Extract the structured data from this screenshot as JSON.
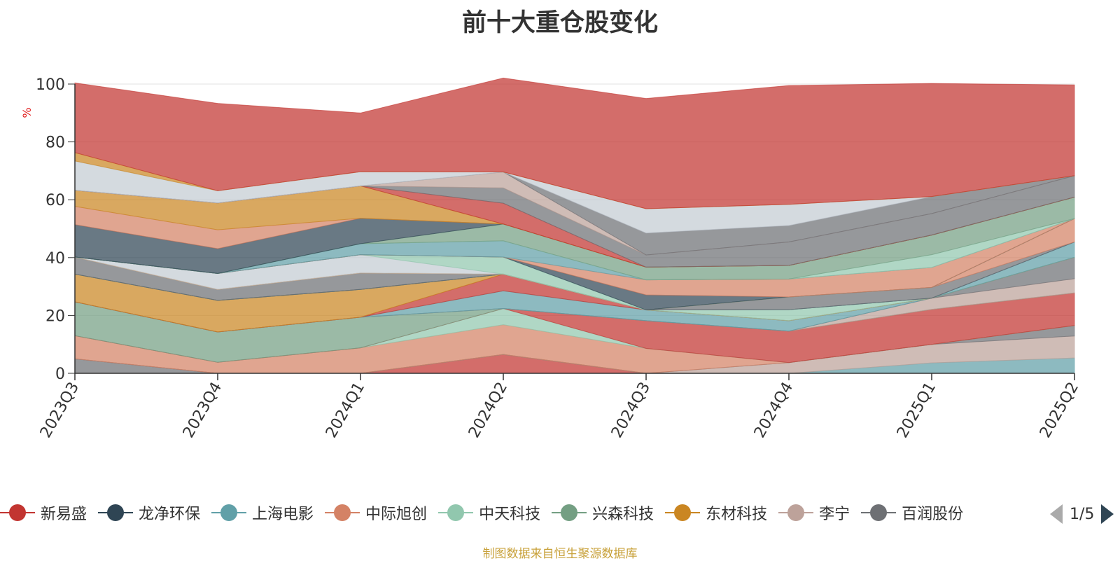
{
  "chart_data": {
    "type": "area",
    "title": "前十大重仓股变化",
    "ylabel": "%",
    "xlabel": "",
    "ylim": [
      0,
      100
    ],
    "yticks": [
      0,
      20,
      40,
      60,
      80,
      100
    ],
    "grid": true,
    "categories": [
      "2023Q3",
      "2023Q4",
      "2024Q1",
      "2024Q2",
      "2024Q3",
      "2024Q4",
      "2025Q1",
      "2025Q2"
    ],
    "series": [
      {
        "name": "",
        "color": "#6e7074",
        "values": [
          5,
          0,
          0,
          0,
          0,
          0,
          0,
          0
        ]
      },
      {
        "name": "",
        "color": "#c23531",
        "values": [
          0,
          0,
          0,
          6.5,
          0,
          0,
          0,
          0
        ]
      },
      {
        "name": "",
        "color": "#61a0a8",
        "values": [
          0,
          0,
          0,
          0,
          0,
          0,
          3.6,
          5.3
        ]
      },
      {
        "name": "",
        "color": "#bda29a",
        "values": [
          0,
          0,
          0,
          0,
          0,
          3.7,
          6.4,
          7.6
        ]
      },
      {
        "name": "",
        "color": "#6e7074",
        "values": [
          0,
          0,
          0,
          0,
          0,
          0,
          0,
          3.6
        ]
      },
      {
        "name": "",
        "color": "#d48265",
        "values": [
          8,
          3.8,
          8.8,
          10.3,
          8.6,
          0,
          0,
          0
        ]
      },
      {
        "name": "",
        "color": "#91c7ae",
        "values": [
          0,
          0,
          0,
          5.6,
          0,
          0,
          0,
          0
        ]
      },
      {
        "name": "",
        "color": "#c23531",
        "values": [
          0,
          0,
          0,
          0,
          9.6,
          10.9,
          12.1,
          11.3
        ]
      },
      {
        "name": "",
        "color": "#749f83",
        "values": [
          11.7,
          10.5,
          10.6,
          0,
          0,
          0,
          0,
          0
        ]
      },
      {
        "name": "",
        "color": "#bda29a",
        "values": [
          0,
          0,
          0,
          0,
          0,
          0,
          3.9,
          4.9
        ]
      },
      {
        "name": "",
        "color": "#6e7074",
        "values": [
          0,
          0,
          0,
          0,
          0,
          0,
          0,
          7.4
        ]
      },
      {
        "name": "",
        "color": "#61a0a8",
        "values": [
          0,
          0,
          0,
          6.1,
          3.7,
          3.6,
          0,
          0
        ]
      },
      {
        "name": "",
        "color": "#c23531",
        "values": [
          0,
          0,
          0,
          5.8,
          0,
          0,
          0,
          0
        ]
      },
      {
        "name": "",
        "color": "#ca8622",
        "values": [
          9.6,
          10.9,
          9.6,
          0,
          0,
          0,
          0,
          0
        ]
      },
      {
        "name": "",
        "color": "#91c7ae",
        "values": [
          0,
          0,
          0,
          0,
          0,
          3.8,
          0,
          0
        ]
      },
      {
        "name": "",
        "color": "#61a0a8",
        "values": [
          0,
          0,
          0,
          0,
          0,
          0,
          0,
          5.3
        ]
      },
      {
        "name": "",
        "color": "#2f4554",
        "values": [
          0,
          0,
          0,
          0,
          0,
          0,
          0,
          0
        ]
      },
      {
        "name": "",
        "color": "#6e7074",
        "values": [
          5.9,
          3.8,
          5.7,
          0,
          0,
          4.4,
          3.7,
          0
        ]
      },
      {
        "name": "",
        "color": "#d48265",
        "values": [
          0,
          0,
          0,
          0,
          0,
          0,
          0,
          8.1
        ]
      },
      {
        "name": "",
        "color": "#ca8622",
        "values": [
          0,
          0,
          0,
          0,
          0,
          0,
          0,
          0
        ]
      },
      {
        "name": "",
        "color": "#c4ccd3",
        "values": [
          0,
          5.5,
          6.3,
          0,
          0,
          0,
          0,
          0
        ]
      },
      {
        "name": "",
        "color": "#91c7ae",
        "values": [
          0,
          0,
          0,
          5.9,
          0,
          0,
          0,
          0
        ]
      },
      {
        "name": "",
        "color": "#2f4554",
        "values": [
          0,
          0,
          0,
          0,
          5.2,
          0,
          0,
          0
        ]
      },
      {
        "name": "",
        "color": "#d48265",
        "values": [
          0,
          0,
          0,
          0,
          5.2,
          6.2,
          6.9,
          0
        ]
      },
      {
        "name": "",
        "color": "#61a0a8",
        "values": [
          0,
          0,
          3.8,
          5.6,
          0,
          0,
          0,
          0
        ]
      },
      {
        "name": "",
        "color": "#91c7ae",
        "values": [
          0,
          0,
          0,
          0,
          0,
          0,
          4.4,
          0
        ]
      },
      {
        "name": "",
        "color": "#749f83",
        "values": [
          0,
          0,
          0,
          5.8,
          4.4,
          4.7,
          6.8,
          7.4
        ]
      },
      {
        "name": "",
        "color": "#2f4554",
        "values": [
          11.2,
          8.6,
          8.8,
          0,
          0,
          0,
          0,
          0
        ]
      },
      {
        "name": "",
        "color": "#d48265",
        "values": [
          6.3,
          6.5,
          0,
          0,
          0,
          0,
          0,
          0
        ]
      },
      {
        "name": "",
        "color": "#ca8622",
        "values": [
          5.6,
          9.3,
          11.2,
          0,
          0,
          0,
          0,
          0
        ]
      },
      {
        "name": "",
        "color": "#c23531",
        "values": [
          0,
          0,
          0,
          7.2,
          0,
          0,
          0,
          0
        ]
      },
      {
        "name": "",
        "color": "#6e7074",
        "values": [
          0,
          0,
          0,
          5.3,
          4.2,
          8.1,
          7.4,
          7.4
        ]
      },
      {
        "name": "",
        "color": "#bda29a",
        "values": [
          0,
          0,
          0,
          5.5,
          0,
          0,
          0,
          0
        ]
      },
      {
        "name": "",
        "color": "#6e7074",
        "values": [
          0,
          0,
          0,
          0,
          7.6,
          5.7,
          5.9,
          0
        ]
      },
      {
        "name": "",
        "color": "#c4ccd3",
        "values": [
          10.1,
          4.2,
          4.9,
          0,
          8.4,
          7.3,
          0,
          0
        ]
      },
      {
        "name": "",
        "color": "#ca8622",
        "values": [
          2.9,
          0,
          0,
          0,
          0,
          0,
          0,
          0
        ]
      },
      {
        "name": "",
        "color": "#c23531",
        "values": [
          24.1,
          30.2,
          20.3,
          32.5,
          38.1,
          41.1,
          39.1,
          31.4
        ]
      }
    ]
  },
  "legend": {
    "items": [
      {
        "label": "新易盛",
        "color": "#c23531"
      },
      {
        "label": "龙净环保",
        "color": "#2f4554"
      },
      {
        "label": "上海电影",
        "color": "#61a0a8"
      },
      {
        "label": "中际旭创",
        "color": "#d48265"
      },
      {
        "label": "中天科技",
        "color": "#91c7ae"
      },
      {
        "label": "兴森科技",
        "color": "#749f83"
      },
      {
        "label": "东材科技",
        "color": "#ca8622"
      },
      {
        "label": "李宁",
        "color": "#bda29a"
      },
      {
        "label": "百润股份",
        "color": "#6e7074"
      }
    ],
    "page": "1/5"
  },
  "source": "制图数据来自恒生聚源数据库"
}
